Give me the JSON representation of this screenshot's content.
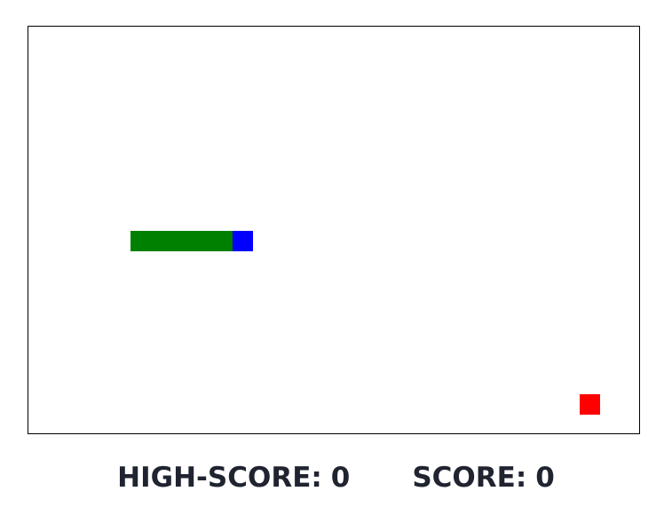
{
  "game": {
    "grid": {
      "cols": 30,
      "rows": 20
    },
    "snake": {
      "head": {
        "col": 10,
        "row": 10
      },
      "body": [
        {
          "col": 9,
          "row": 10
        },
        {
          "col": 8,
          "row": 10
        },
        {
          "col": 7,
          "row": 10
        },
        {
          "col": 6,
          "row": 10
        },
        {
          "col": 5,
          "row": 10
        }
      ]
    },
    "food": {
      "col": 27,
      "row": 18
    },
    "colors": {
      "head": "#0000ff",
      "body": "#008000",
      "food": "#ff0000",
      "border": "#000000"
    }
  },
  "scoreboard": {
    "high_score_label": "HIGH-SCORE:",
    "high_score_value": "0",
    "score_label": "SCORE:",
    "score_value": "0"
  }
}
